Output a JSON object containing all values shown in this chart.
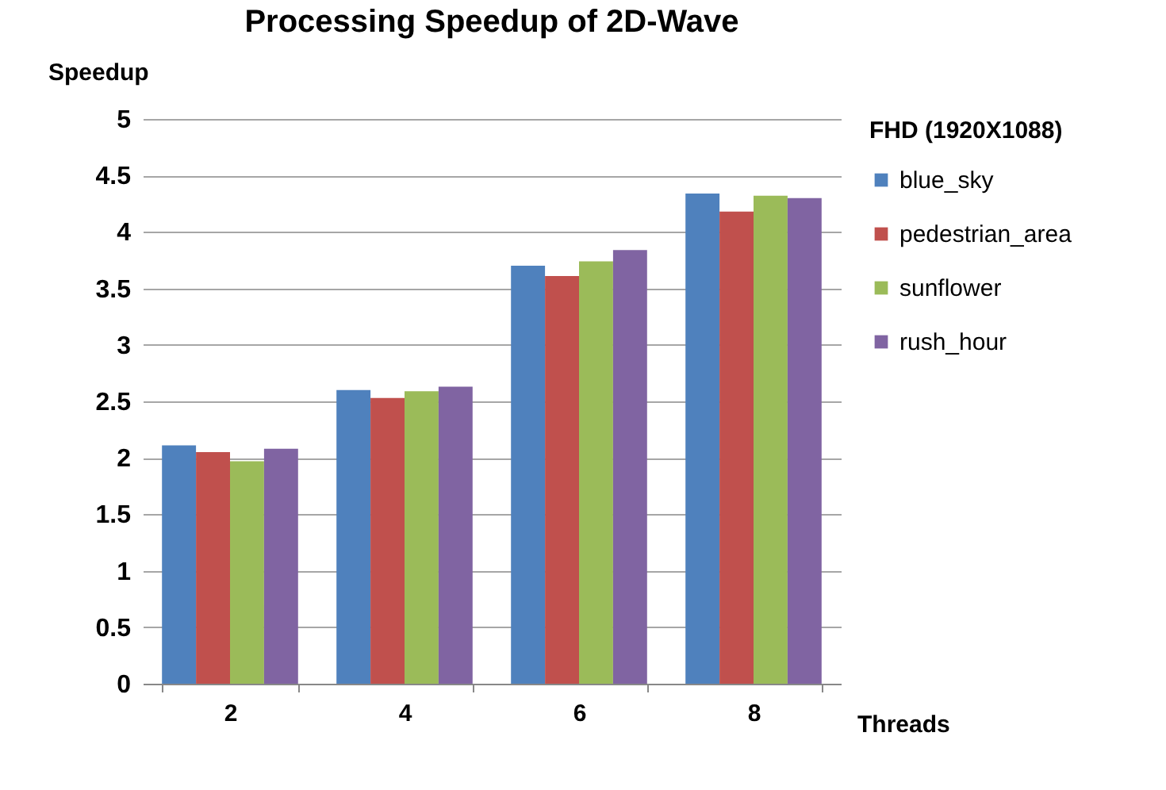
{
  "chart_data": {
    "type": "bar",
    "title": "Processing Speedup of 2D-Wave",
    "xlabel": "Threads",
    "ylabel": "Speedup",
    "legend_title": "FHD (1920X1088)",
    "categories": [
      "2",
      "4",
      "6",
      "8"
    ],
    "series": [
      {
        "name": "blue_sky",
        "color": "#4f81bd",
        "values": [
          2.11,
          2.6,
          3.7,
          4.34
        ]
      },
      {
        "name": "pedestrian_area",
        "color": "#c0504d",
        "values": [
          2.05,
          2.53,
          3.61,
          4.18
        ]
      },
      {
        "name": "sunflower",
        "color": "#9bbb59",
        "values": [
          1.97,
          2.59,
          3.74,
          4.32
        ]
      },
      {
        "name": "rush_hour",
        "color": "#8064a2",
        "values": [
          2.08,
          2.63,
          3.84,
          4.3
        ]
      }
    ],
    "ylim": [
      0,
      5
    ],
    "yticks": [
      0,
      0.5,
      1,
      1.5,
      2,
      2.5,
      3,
      3.5,
      4,
      4.5,
      5
    ],
    "grid": "y",
    "legend": "right"
  }
}
